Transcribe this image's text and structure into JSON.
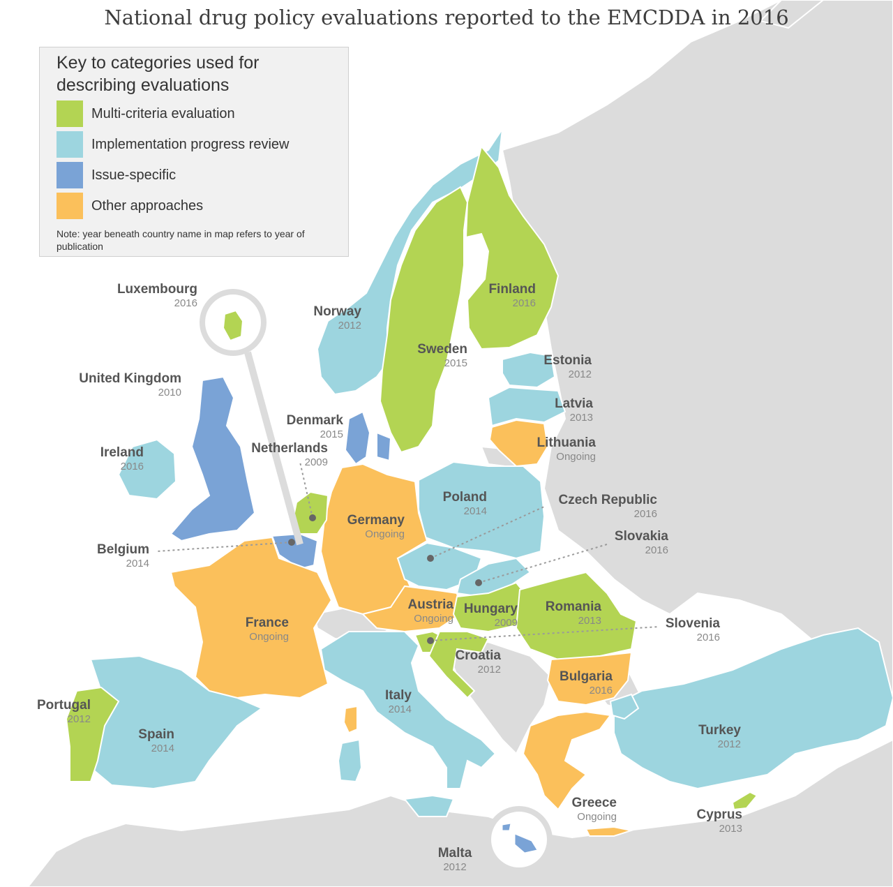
{
  "title": "National drug policy evaluations reported to the EMCDDA in 2016",
  "legend": {
    "title": "Key to categories used for describing evaluations",
    "items": [
      {
        "key": "multi",
        "label": "Multi-criteria evaluation",
        "color": "#b3d453"
      },
      {
        "key": "impl",
        "label": "Implementation progress review",
        "color": "#9dd5df"
      },
      {
        "key": "issue",
        "label": "Issue-specific",
        "color": "#7aa3d6"
      },
      {
        "key": "other",
        "label": "Other approaches",
        "color": "#fbc05b"
      }
    ],
    "note": "Note: year beneath country name in map refers to year of publication"
  },
  "colors": {
    "background": "#ffffff",
    "land_neutral": "#dcdcdc",
    "border": "#ffffff",
    "leader_line": "#9a9a9a",
    "label_name": "#555555",
    "label_year": "#888888"
  },
  "countries": [
    {
      "name": "Luxembourg",
      "year": "2016",
      "category": "multi"
    },
    {
      "name": "Norway",
      "year": "2012",
      "category": "impl"
    },
    {
      "name": "Finland",
      "year": "2016",
      "category": "multi"
    },
    {
      "name": "Sweden",
      "year": "2015",
      "category": "multi"
    },
    {
      "name": "Estonia",
      "year": "2012",
      "category": "impl"
    },
    {
      "name": "United Kingdom",
      "year": "2010",
      "category": "issue"
    },
    {
      "name": "Latvia",
      "year": "2013",
      "category": "impl"
    },
    {
      "name": "Denmark",
      "year": "2015",
      "category": "issue"
    },
    {
      "name": "Ireland",
      "year": "2016",
      "category": "impl"
    },
    {
      "name": "Netherlands",
      "year": "2009",
      "category": "multi"
    },
    {
      "name": "Lithuania",
      "year": "Ongoing",
      "category": "other"
    },
    {
      "name": "Poland",
      "year": "2014",
      "category": "impl"
    },
    {
      "name": "Czech Republic",
      "year": "2016",
      "category": "impl"
    },
    {
      "name": "Germany",
      "year": "Ongoing",
      "category": "other"
    },
    {
      "name": "Belgium",
      "year": "2014",
      "category": "issue"
    },
    {
      "name": "Slovakia",
      "year": "2016",
      "category": "impl"
    },
    {
      "name": "Austria",
      "year": "Ongoing",
      "category": "other"
    },
    {
      "name": "Romania",
      "year": "2013",
      "category": "multi"
    },
    {
      "name": "Hungary",
      "year": "2009",
      "category": "multi"
    },
    {
      "name": "France",
      "year": "Ongoing",
      "category": "other"
    },
    {
      "name": "Slovenia",
      "year": "2016",
      "category": "multi"
    },
    {
      "name": "Croatia",
      "year": "2012",
      "category": "multi"
    },
    {
      "name": "Bulgaria",
      "year": "2016",
      "category": "other"
    },
    {
      "name": "Portugal",
      "year": "2012",
      "category": "multi"
    },
    {
      "name": "Italy",
      "year": "2014",
      "category": "impl"
    },
    {
      "name": "Turkey",
      "year": "2012",
      "category": "impl"
    },
    {
      "name": "Spain",
      "year": "2014",
      "category": "impl"
    },
    {
      "name": "Greece",
      "year": "Ongoing",
      "category": "other"
    },
    {
      "name": "Cyprus",
      "year": "2013",
      "category": "multi"
    },
    {
      "name": "Malta",
      "year": "2012",
      "category": "issue"
    }
  ]
}
